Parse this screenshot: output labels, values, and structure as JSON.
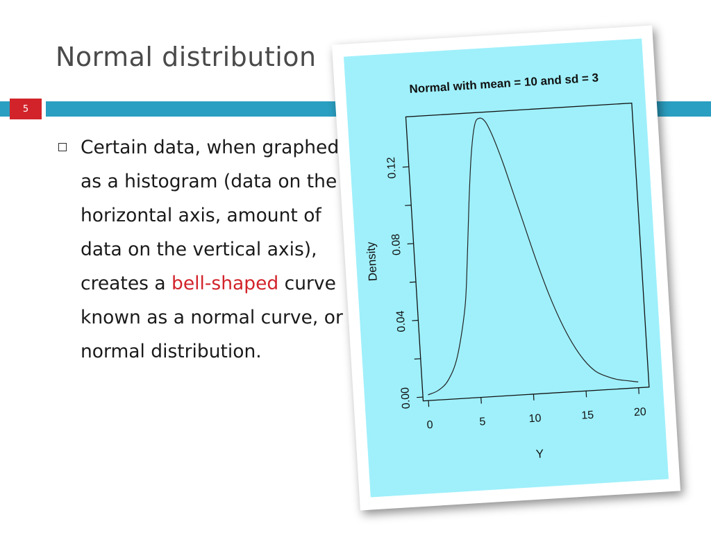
{
  "slide": {
    "title": "Normal distribution",
    "number": "5",
    "accent_color": "#2b9fc1",
    "number_bg_color": "#d2232a"
  },
  "bullet": {
    "icon": "square-bullet-icon",
    "text_before": "Certain data, when graphed as a histogram (data on the horizontal axis, amount of data on the vertical axis), creates a ",
    "highlight": "bell-shaped",
    "highlight_color": "#d2232a",
    "text_after": " curve known as a normal curve, or normal distribution."
  },
  "chart_data": {
    "type": "line",
    "title": "Normal with mean = 10 and sd = 3",
    "xlabel": "Y",
    "ylabel": "Density",
    "xlim": [
      -0.5,
      21
    ],
    "ylim": [
      -0.002,
      0.146
    ],
    "xticks": [
      0,
      5,
      10,
      15,
      20
    ],
    "xtick_labels": [
      "0",
      "5",
      "10",
      "15",
      "20"
    ],
    "yticks": [
      0.0,
      0.04,
      0.08,
      0.12
    ],
    "ytick_labels": [
      "0.00",
      "0.04",
      "0.08",
      "0.12"
    ],
    "yminor_ticks": [
      0.02,
      0.06,
      0.1
    ],
    "background_color": "#9ff0fb",
    "grid": false,
    "series": [
      {
        "x": [
          0,
          1,
          2,
          3,
          4,
          4.5,
          5,
          5.5,
          6,
          6.5,
          7,
          7.5,
          8,
          8.5,
          9,
          10,
          11,
          12,
          13,
          14,
          15,
          16,
          17,
          18,
          19,
          20
        ],
        "y": [
          0.001,
          0.003,
          0.008,
          0.02,
          0.045,
          0.07,
          0.1,
          0.125,
          0.14,
          0.143,
          0.141,
          0.135,
          0.127,
          0.118,
          0.108,
          0.088,
          0.068,
          0.05,
          0.035,
          0.023,
          0.014,
          0.008,
          0.005,
          0.003,
          0.002,
          0.001
        ]
      }
    ]
  }
}
